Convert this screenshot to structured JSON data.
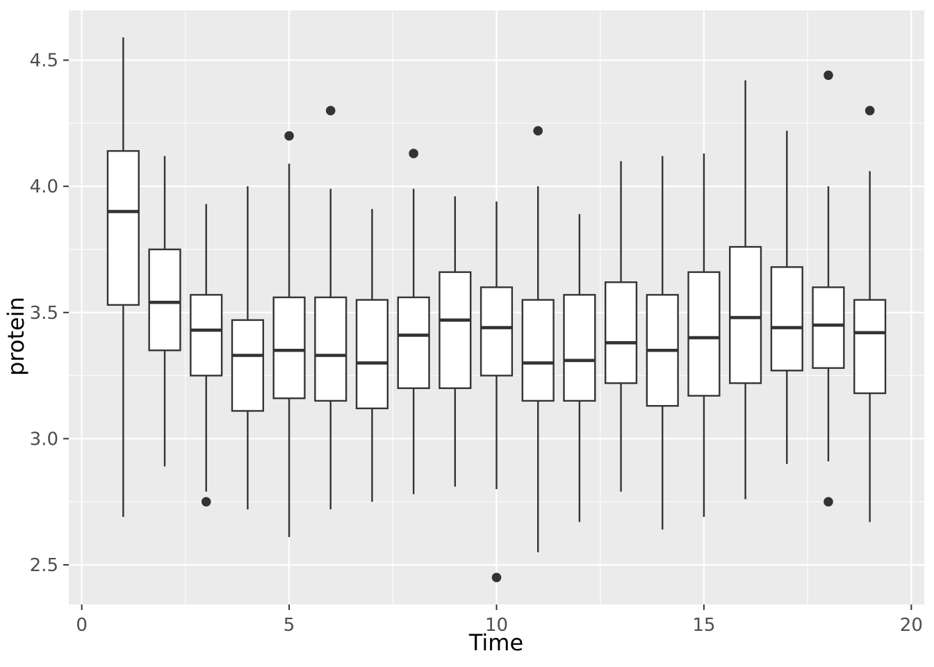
{
  "chart_data": {
    "type": "boxplot",
    "title": "",
    "xlabel": "Time",
    "ylabel": "protein",
    "xlim": [
      -0.3125,
      20.3125
    ],
    "ylim": [
      2.343,
      4.697
    ],
    "x_ticks": [
      0,
      5,
      10,
      15,
      20
    ],
    "x_tick_labels": [
      "0",
      "5",
      "10",
      "15",
      "20"
    ],
    "y_ticks": [
      2.5,
      3.0,
      3.5,
      4.0,
      4.5
    ],
    "y_tick_labels": [
      "2.5",
      "3.0",
      "3.5",
      "4.0",
      "4.5"
    ],
    "x_minor_gridlines": [
      2.5,
      7.5,
      12.5,
      17.5
    ],
    "y_minor_gridlines": [
      2.75,
      3.25,
      3.75,
      4.25
    ],
    "grid": true,
    "legend": "none",
    "box_width": 0.75,
    "series": [
      {
        "time": 1,
        "lower": 2.69,
        "q1": 3.53,
        "median": 3.9,
        "q3": 4.14,
        "upper": 4.59,
        "outliers": []
      },
      {
        "time": 2,
        "lower": 2.89,
        "q1": 3.35,
        "median": 3.54,
        "q3": 3.75,
        "upper": 4.12,
        "outliers": []
      },
      {
        "time": 3,
        "lower": 2.79,
        "q1": 3.25,
        "median": 3.43,
        "q3": 3.57,
        "upper": 3.93,
        "outliers": [
          2.75
        ]
      },
      {
        "time": 4,
        "lower": 2.72,
        "q1": 3.11,
        "median": 3.33,
        "q3": 3.47,
        "upper": 4.0,
        "outliers": []
      },
      {
        "time": 5,
        "lower": 2.61,
        "q1": 3.16,
        "median": 3.35,
        "q3": 3.56,
        "upper": 4.09,
        "outliers": [
          4.2
        ]
      },
      {
        "time": 6,
        "lower": 2.72,
        "q1": 3.15,
        "median": 3.33,
        "q3": 3.56,
        "upper": 3.99,
        "outliers": [
          4.3
        ]
      },
      {
        "time": 7,
        "lower": 2.75,
        "q1": 3.12,
        "median": 3.3,
        "q3": 3.55,
        "upper": 3.91,
        "outliers": []
      },
      {
        "time": 8,
        "lower": 2.78,
        "q1": 3.2,
        "median": 3.41,
        "q3": 3.56,
        "upper": 3.99,
        "outliers": [
          4.13
        ]
      },
      {
        "time": 9,
        "lower": 2.81,
        "q1": 3.2,
        "median": 3.47,
        "q3": 3.66,
        "upper": 3.96,
        "outliers": []
      },
      {
        "time": 10,
        "lower": 2.8,
        "q1": 3.25,
        "median": 3.44,
        "q3": 3.6,
        "upper": 3.94,
        "outliers": [
          2.45
        ]
      },
      {
        "time": 11,
        "lower": 2.55,
        "q1": 3.15,
        "median": 3.3,
        "q3": 3.55,
        "upper": 4.0,
        "outliers": [
          4.22
        ]
      },
      {
        "time": 12,
        "lower": 2.67,
        "q1": 3.15,
        "median": 3.31,
        "q3": 3.57,
        "upper": 3.89,
        "outliers": []
      },
      {
        "time": 13,
        "lower": 2.79,
        "q1": 3.22,
        "median": 3.38,
        "q3": 3.62,
        "upper": 4.1,
        "outliers": []
      },
      {
        "time": 14,
        "lower": 2.64,
        "q1": 3.13,
        "median": 3.35,
        "q3": 3.57,
        "upper": 4.12,
        "outliers": []
      },
      {
        "time": 15,
        "lower": 2.69,
        "q1": 3.17,
        "median": 3.4,
        "q3": 3.66,
        "upper": 4.13,
        "outliers": []
      },
      {
        "time": 16,
        "lower": 2.76,
        "q1": 3.22,
        "median": 3.48,
        "q3": 3.76,
        "upper": 4.42,
        "outliers": []
      },
      {
        "time": 17,
        "lower": 2.9,
        "q1": 3.27,
        "median": 3.44,
        "q3": 3.68,
        "upper": 4.22,
        "outliers": []
      },
      {
        "time": 18,
        "lower": 2.91,
        "q1": 3.28,
        "median": 3.45,
        "q3": 3.6,
        "upper": 4.0,
        "outliers": [
          4.44,
          2.75
        ]
      },
      {
        "time": 19,
        "lower": 2.67,
        "q1": 3.18,
        "median": 3.42,
        "q3": 3.55,
        "upper": 4.06,
        "outliers": [
          4.3
        ]
      }
    ],
    "colors": {
      "panel_background": "#EBEBEB",
      "gridline": "#FFFFFF",
      "box_stroke": "#333333",
      "box_fill": "#FFFFFF",
      "outlier_fill": "#333333",
      "tick_mark": "#333333",
      "tick_text": "#4D4D4D",
      "axis_title_text": "#000000",
      "outer_background": "#FFFFFF"
    }
  }
}
